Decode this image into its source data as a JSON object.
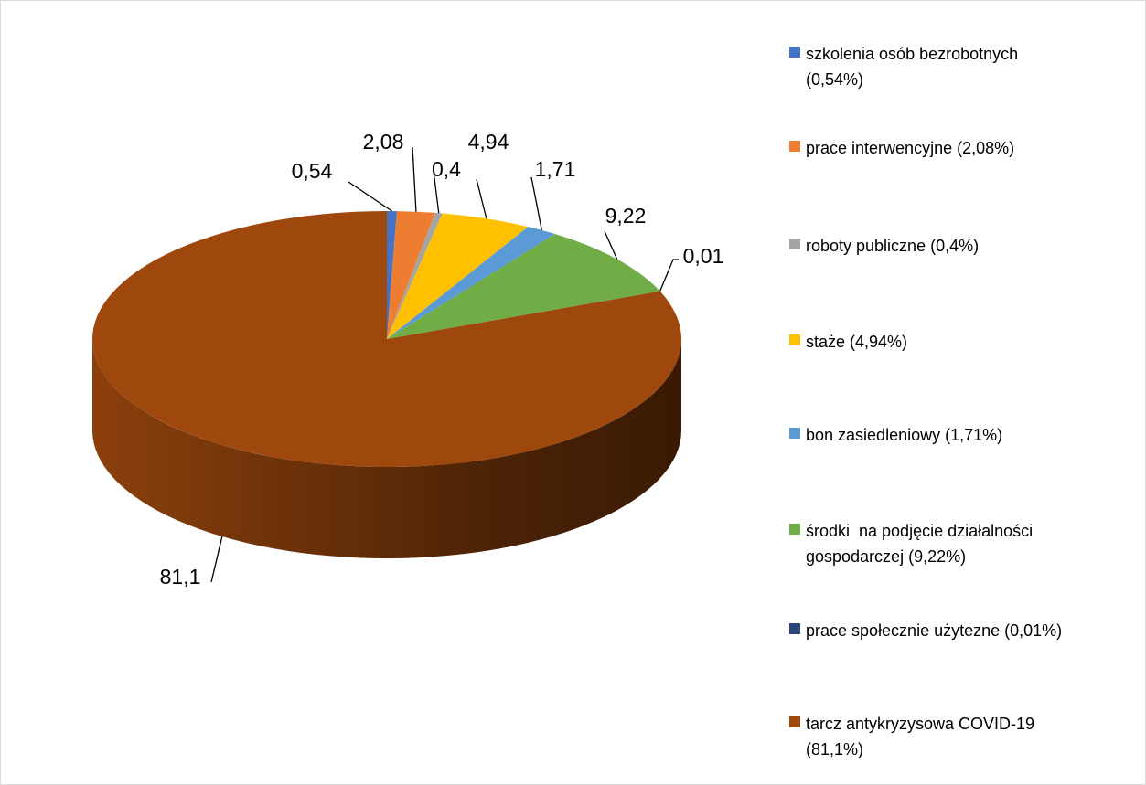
{
  "chart_data": {
    "type": "pie3d",
    "categories": [
      "szkolenia osób bezrobotnych (0,54%)",
      "prace interwencyjne (2,08%)",
      "roboty publiczne (0,4%)",
      "staże (4,94%)",
      "bon zasiedleniowy (1,71%)",
      "środki  na podjęcie działalności gospodarczej (9,22%)",
      "prace społecznie użytezne (0,01%)",
      "tarcz antykryzysowa COVID-19 (81,1%)"
    ],
    "values": [
      0.54,
      2.08,
      0.4,
      4.94,
      1.71,
      9.22,
      0.01,
      81.1
    ],
    "value_labels": [
      "0,54",
      "2,08",
      "0,4",
      "4,94",
      "1,71",
      "9,22",
      "0,01",
      "81,1"
    ],
    "colors": [
      "#4472c4",
      "#ed7d31",
      "#a5a5a5",
      "#ffc000",
      "#5b9bd5",
      "#70ad47",
      "#264478",
      "#9e480e"
    ],
    "legend": "right"
  }
}
